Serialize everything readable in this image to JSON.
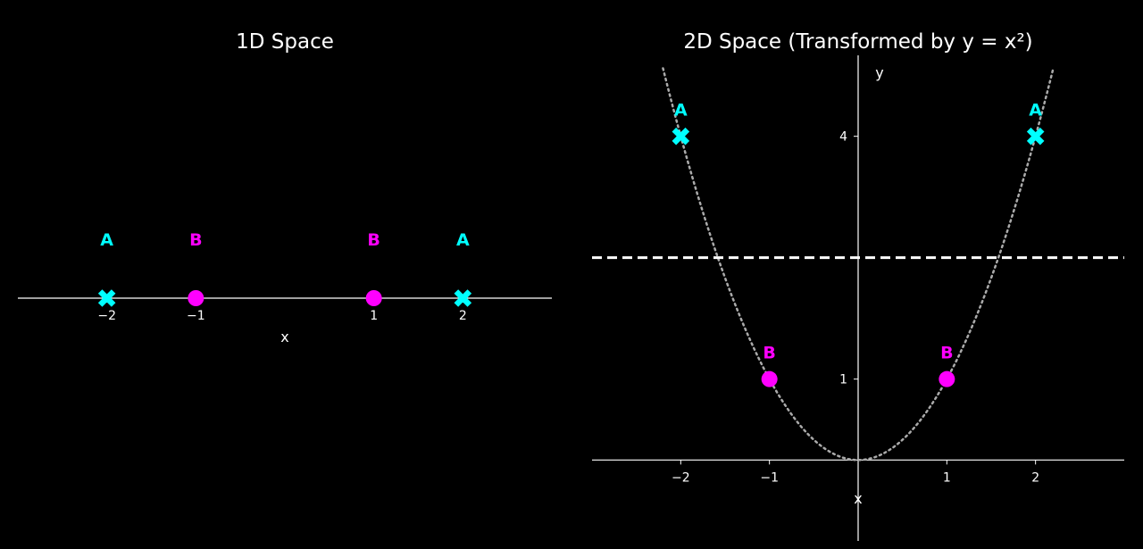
{
  "colors": {
    "background": "#000000",
    "foreground": "#ffffff",
    "class_a": "#00ffff",
    "class_b": "#ff00ff",
    "curve": "#aaaaaa"
  },
  "chart_data": [
    {
      "type": "scatter",
      "title": "1D Space",
      "xlabel": "x",
      "ylabel": "",
      "xlim": [
        -3,
        3
      ],
      "xticks": [
        -2,
        -1,
        1,
        2
      ],
      "xtick_labels": [
        "−2",
        "−1",
        "1",
        "2"
      ],
      "grid": false,
      "y_axis_visible": false,
      "series": [
        {
          "name": "A",
          "marker": "x-icon",
          "color": "#00ffff",
          "x": [
            -2,
            2
          ]
        },
        {
          "name": "B",
          "marker": "circle-icon",
          "color": "#ff00ff",
          "x": [
            -1,
            1
          ]
        }
      ]
    },
    {
      "type": "scatter",
      "title": "2D Space (Transformed by y = x²)",
      "xlabel": "x",
      "ylabel": "y",
      "xlim": [
        -3,
        3
      ],
      "ylim": [
        -1,
        5
      ],
      "xticks": [
        -2,
        -1,
        1,
        2
      ],
      "xtick_labels": [
        "−2",
        "−1",
        "1",
        "2"
      ],
      "yticks": [
        1,
        4
      ],
      "ytick_labels": [
        "1",
        "4"
      ],
      "grid": false,
      "curve": {
        "equation": "y = x²",
        "x_range": [
          -2.2,
          2.2
        ],
        "style": "dotted",
        "color": "#aaaaaa"
      },
      "threshold_line": {
        "y": 2.5,
        "style": "dashed",
        "color": "#ffffff"
      },
      "series": [
        {
          "name": "A",
          "marker": "x-icon",
          "color": "#00ffff",
          "x": [
            -2,
            2
          ],
          "y": [
            4,
            4
          ]
        },
        {
          "name": "B",
          "marker": "circle-icon",
          "color": "#ff00ff",
          "x": [
            -1,
            1
          ],
          "y": [
            1,
            1
          ]
        }
      ]
    }
  ]
}
